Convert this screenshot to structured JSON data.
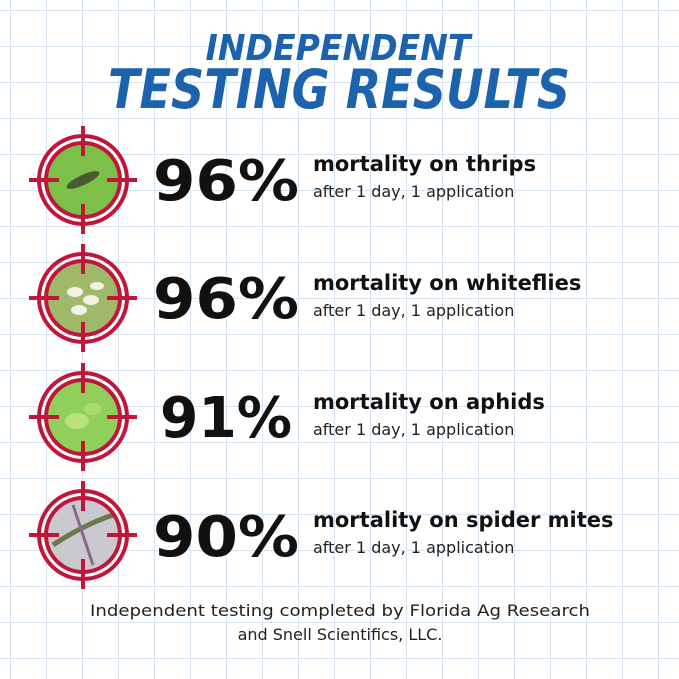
{
  "header": {
    "title_line1": "INDEPENDENT",
    "title_line2": "TESTING RESULTS"
  },
  "results": [
    {
      "percent": "96%",
      "label": "mortality on thrips",
      "detail": "after 1 day, 1 application"
    },
    {
      "percent": "96%",
      "label": "mortality on whiteflies",
      "detail": "after 1 day, 1 application"
    },
    {
      "percent": "91%",
      "label": "mortality on aphids",
      "detail": "after 1 day, 1 application"
    },
    {
      "percent": "90%",
      "label": "mortality on spider mites",
      "detail": "after 1 day, 1 application"
    }
  ],
  "footer": {
    "line1": "Independent testing completed by Florida Ag Research",
    "line2": "and Snell Scientifics, LLC."
  }
}
